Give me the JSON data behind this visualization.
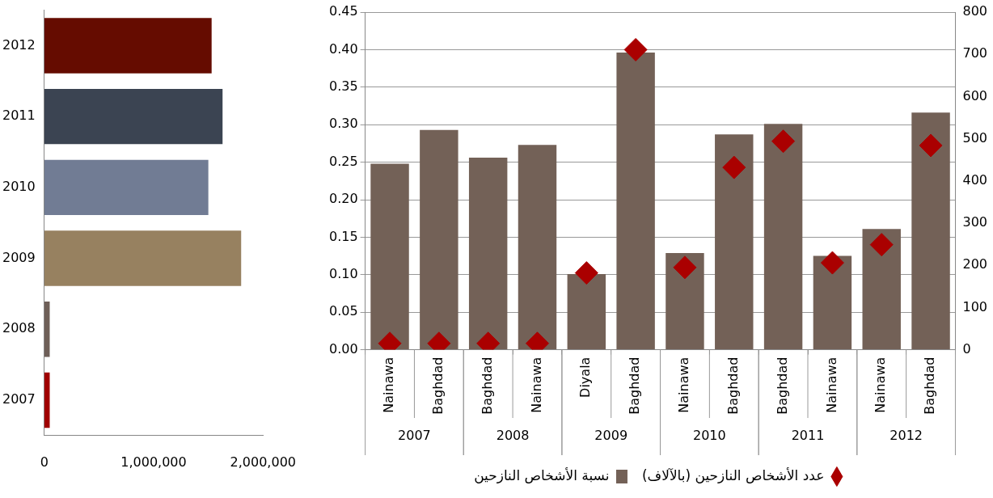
{
  "chart_data": [
    {
      "type": "bar",
      "orientation": "horizontal",
      "categories": [
        "2012",
        "2011",
        "2010",
        "2009",
        "2008",
        "2007"
      ],
      "values": [
        1530000,
        1630000,
        1500000,
        1800000,
        50000,
        50000
      ],
      "colors": [
        "#650c00",
        "#3b4452",
        "#717c94",
        "#978160",
        "#6e5f58",
        "#a00000"
      ],
      "xlim": [
        0,
        2000000
      ],
      "xticks": [
        0,
        {
          "value": 1000000,
          "label": "1,000,000"
        },
        {
          "value": 2000000,
          "label": "2,000,000"
        }
      ],
      "grid": false,
      "legend": false
    },
    {
      "type": "bar",
      "categories": [
        "Nainawa",
        "Baghdad",
        "Baghdad",
        "Nainawa",
        "Diyala",
        "Baghdad",
        "Nainawa",
        "Baghdad",
        "Baghdad",
        "Nainawa",
        "Nainawa",
        "Baghdad"
      ],
      "annotations": [
        "2007",
        "2008",
        "2009",
        "2010",
        "2011",
        "2012"
      ],
      "series": [
        {
          "name": "نسبة الأشخاص النازحين",
          "type": "bar",
          "color": "#736157",
          "values": [
            0.248,
            0.293,
            0.256,
            0.273,
            0.101,
            0.396,
            0.129,
            0.287,
            0.301,
            0.125,
            0.161,
            0.316
          ]
        },
        {
          "name": "عدد الأشخاص النازحين (بالآلاف)",
          "type": "scatter",
          "axis": "y2",
          "color": "#aa0000",
          "values": [
            15,
            15,
            15,
            15,
            182,
            711,
            195,
            432,
            494,
            206,
            249,
            484
          ]
        }
      ],
      "ylim": [
        0,
        0.45
      ],
      "yticks": [
        {
          "value": 0,
          "label": "0.00"
        },
        {
          "value": 0.05,
          "label": "0.05"
        },
        {
          "value": 0.1,
          "label": "0.10"
        },
        {
          "value": 0.15,
          "label": "0.15"
        },
        {
          "value": 0.2,
          "label": "0.20"
        },
        {
          "value": 0.25,
          "label": "0.25"
        },
        {
          "value": 0.3,
          "label": "0.30"
        },
        {
          "value": 0.35,
          "label": "0.35"
        },
        {
          "value": 0.4,
          "label": "0.40"
        },
        {
          "value": 0.45,
          "label": "0.45"
        }
      ],
      "y2lim": [
        0,
        800
      ],
      "y2ticks": [
        0,
        100,
        200,
        300,
        400,
        500,
        600,
        700,
        800
      ],
      "grid": "y",
      "legend": "bottom",
      "marker": "diamond"
    }
  ]
}
